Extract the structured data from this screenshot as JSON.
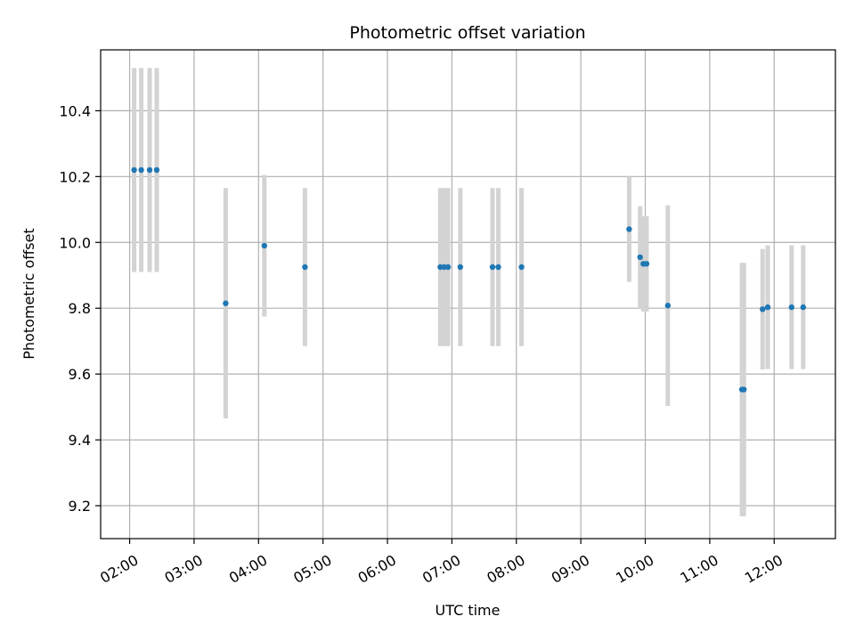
{
  "chart_data": {
    "type": "scatter",
    "title": "Photometric offset variation",
    "xlabel": "UTC time",
    "ylabel": "Photometric offset",
    "x_unit": "hours UTC",
    "xlim": [
      1.55,
      12.95
    ],
    "ylim": [
      9.1,
      10.585
    ],
    "grid": true,
    "x_ticks": [
      {
        "value": 2,
        "label": "02:00"
      },
      {
        "value": 3,
        "label": "03:00"
      },
      {
        "value": 4,
        "label": "04:00"
      },
      {
        "value": 5,
        "label": "05:00"
      },
      {
        "value": 6,
        "label": "06:00"
      },
      {
        "value": 7,
        "label": "07:00"
      },
      {
        "value": 8,
        "label": "08:00"
      },
      {
        "value": 9,
        "label": "09:00"
      },
      {
        "value": 10,
        "label": "10:00"
      },
      {
        "value": 11,
        "label": "11:00"
      },
      {
        "value": 12,
        "label": "12:00"
      }
    ],
    "y_ticks": [
      {
        "value": 9.2,
        "label": "9.2"
      },
      {
        "value": 9.4,
        "label": "9.4"
      },
      {
        "value": 9.6,
        "label": "9.6"
      },
      {
        "value": 9.8,
        "label": "9.8"
      },
      {
        "value": 10.0,
        "label": "10.0"
      },
      {
        "value": 10.2,
        "label": "10.2"
      },
      {
        "value": 10.4,
        "label": "10.4"
      }
    ],
    "point_color": "#1f77b4",
    "errorbar_color": "#d3d3d3",
    "points": [
      {
        "x": 2.07,
        "y": 10.22,
        "err": 0.31
      },
      {
        "x": 2.18,
        "y": 10.22,
        "err": 0.31
      },
      {
        "x": 2.31,
        "y": 10.22,
        "err": 0.31
      },
      {
        "x": 2.42,
        "y": 10.22,
        "err": 0.31
      },
      {
        "x": 3.49,
        "y": 9.815,
        "err": 0.35
      },
      {
        "x": 4.09,
        "y": 9.99,
        "err": 0.215
      },
      {
        "x": 4.72,
        "y": 9.925,
        "err": 0.24
      },
      {
        "x": 6.82,
        "y": 9.925,
        "err": 0.24
      },
      {
        "x": 6.88,
        "y": 9.925,
        "err": 0.24
      },
      {
        "x": 6.94,
        "y": 9.925,
        "err": 0.24
      },
      {
        "x": 7.13,
        "y": 9.925,
        "err": 0.24
      },
      {
        "x": 7.63,
        "y": 9.925,
        "err": 0.24
      },
      {
        "x": 7.72,
        "y": 9.925,
        "err": 0.24
      },
      {
        "x": 8.08,
        "y": 9.925,
        "err": 0.24
      },
      {
        "x": 9.75,
        "y": 10.04,
        "err": 0.16
      },
      {
        "x": 9.92,
        "y": 9.955,
        "err": 0.155
      },
      {
        "x": 9.97,
        "y": 9.935,
        "err": 0.145
      },
      {
        "x": 10.02,
        "y": 9.935,
        "err": 0.145
      },
      {
        "x": 10.35,
        "y": 9.808,
        "err": 0.305
      },
      {
        "x": 11.5,
        "y": 9.553,
        "err": 0.385
      },
      {
        "x": 11.53,
        "y": 9.553,
        "err": 0.385
      },
      {
        "x": 11.82,
        "y": 9.797,
        "err": 0.183
      },
      {
        "x": 11.9,
        "y": 9.803,
        "err": 0.188
      },
      {
        "x": 12.27,
        "y": 9.803,
        "err": 0.188
      },
      {
        "x": 12.45,
        "y": 9.803,
        "err": 0.188
      }
    ]
  }
}
